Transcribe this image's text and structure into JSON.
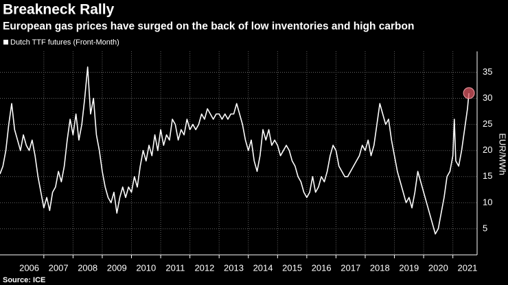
{
  "chart_data": {
    "type": "line",
    "title": "Breakneck Rally",
    "subtitle": "European gas prices have surged on the back of low inventories and high carbon",
    "y_label": "EUR/MWh",
    "source": "Source: ICE",
    "series": [
      {
        "name": "Dutch TTF futures (Front-Month)",
        "color": "#ffffff",
        "x": [
          2005.5,
          2005.6,
          2005.7,
          2005.8,
          2005.9,
          2006.0,
          2006.1,
          2006.2,
          2006.3,
          2006.4,
          2006.5,
          2006.6,
          2006.7,
          2006.8,
          2006.9,
          2007.0,
          2007.1,
          2007.2,
          2007.3,
          2007.4,
          2007.5,
          2007.6,
          2007.7,
          2007.8,
          2007.9,
          2008.0,
          2008.1,
          2008.2,
          2008.3,
          2008.4,
          2008.5,
          2008.6,
          2008.7,
          2008.8,
          2008.9,
          2009.0,
          2009.1,
          2009.2,
          2009.3,
          2009.4,
          2009.5,
          2009.6,
          2009.7,
          2009.8,
          2009.9,
          2010.0,
          2010.1,
          2010.2,
          2010.3,
          2010.4,
          2010.5,
          2010.6,
          2010.7,
          2010.8,
          2010.9,
          2011.0,
          2011.1,
          2011.2,
          2011.3,
          2011.4,
          2011.5,
          2011.6,
          2011.7,
          2011.8,
          2011.9,
          2012.0,
          2012.1,
          2012.2,
          2012.3,
          2012.4,
          2012.5,
          2012.6,
          2012.7,
          2012.8,
          2012.9,
          2013.0,
          2013.1,
          2013.2,
          2013.3,
          2013.4,
          2013.5,
          2013.6,
          2013.7,
          2013.8,
          2013.9,
          2014.0,
          2014.1,
          2014.2,
          2014.3,
          2014.4,
          2014.5,
          2014.6,
          2014.7,
          2014.8,
          2014.9,
          2015.0,
          2015.1,
          2015.2,
          2015.3,
          2015.4,
          2015.5,
          2015.6,
          2015.7,
          2015.8,
          2015.9,
          2016.0,
          2016.1,
          2016.2,
          2016.3,
          2016.4,
          2016.5,
          2016.6,
          2016.7,
          2016.8,
          2016.9,
          2017.0,
          2017.1,
          2017.2,
          2017.3,
          2017.4,
          2017.5,
          2017.6,
          2017.7,
          2017.8,
          2017.9,
          2018.0,
          2018.1,
          2018.2,
          2018.3,
          2018.4,
          2018.5,
          2018.6,
          2018.7,
          2018.8,
          2018.9,
          2019.0,
          2019.1,
          2019.2,
          2019.3,
          2019.4,
          2019.5,
          2019.6,
          2019.7,
          2019.8,
          2019.9,
          2020.0,
          2020.1,
          2020.2,
          2020.3,
          2020.4,
          2020.5,
          2020.6,
          2020.7,
          2020.8,
          2020.9,
          2021.0,
          2021.05,
          2021.1,
          2021.2,
          2021.3,
          2021.4,
          2021.5,
          2021.55
        ],
        "values": [
          15.5,
          17,
          20,
          25,
          29,
          24,
          22,
          20,
          23,
          21,
          20,
          22,
          19,
          15,
          12,
          9,
          11,
          8.5,
          12,
          13,
          16,
          14,
          17,
          22,
          26,
          23,
          27,
          22,
          25,
          30,
          36,
          27,
          30,
          23,
          20,
          16,
          13,
          11,
          10,
          12,
          8,
          11,
          13,
          11,
          13,
          12,
          15,
          13,
          17,
          20,
          18,
          21,
          19,
          23,
          20,
          24,
          21,
          23,
          22,
          26,
          25,
          22,
          24,
          23,
          26,
          24,
          25,
          24,
          25,
          27,
          26,
          28,
          27,
          26,
          27,
          27,
          26,
          27,
          26,
          27,
          27,
          29,
          27,
          25,
          22,
          20,
          22,
          18,
          16,
          19,
          24,
          22,
          24,
          21,
          22,
          21,
          19,
          20,
          21,
          20,
          18,
          17,
          15,
          14,
          12,
          11,
          12,
          15,
          12,
          13,
          15,
          14,
          16,
          19,
          21,
          20,
          17,
          16,
          15,
          15,
          16,
          17,
          18,
          19,
          21,
          20,
          22,
          19,
          21,
          25,
          29,
          27,
          25,
          26,
          22,
          19,
          16,
          14,
          12,
          10,
          11,
          9,
          12,
          16,
          14,
          12,
          10,
          8,
          6,
          4,
          5,
          8,
          11,
          15,
          16,
          19,
          26,
          18,
          17,
          20,
          24,
          28,
          31
        ]
      }
    ],
    "xlim": [
      2005.5,
      2021.83
    ],
    "xticks": [
      {
        "value": 2006.5,
        "label": "2006"
      },
      {
        "value": 2007.5,
        "label": "2007"
      },
      {
        "value": 2008.5,
        "label": "2008"
      },
      {
        "value": 2009.5,
        "label": "2009"
      },
      {
        "value": 2010.5,
        "label": "2010"
      },
      {
        "value": 2011.5,
        "label": "2011"
      },
      {
        "value": 2012.5,
        "label": "2012"
      },
      {
        "value": 2013.5,
        "label": "2013"
      },
      {
        "value": 2014.5,
        "label": "2014"
      },
      {
        "value": 2015.5,
        "label": "2015"
      },
      {
        "value": 2016.5,
        "label": "2016"
      },
      {
        "value": 2017.5,
        "label": "2017"
      },
      {
        "value": 2018.5,
        "label": "2018"
      },
      {
        "value": 2019.5,
        "label": "2019"
      },
      {
        "value": 2020.5,
        "label": "2020"
      },
      {
        "value": 2021.5,
        "label": "2021"
      }
    ],
    "xgrid": [
      2007,
      2008,
      2009,
      2010,
      2011,
      2012,
      2013,
      2014,
      2015,
      2016,
      2017,
      2018,
      2019,
      2020,
      2021
    ],
    "ylim": [
      0,
      39
    ],
    "yticks": [
      5,
      10,
      15,
      20,
      25,
      30,
      35
    ],
    "grid": true,
    "highlight_last": true
  }
}
